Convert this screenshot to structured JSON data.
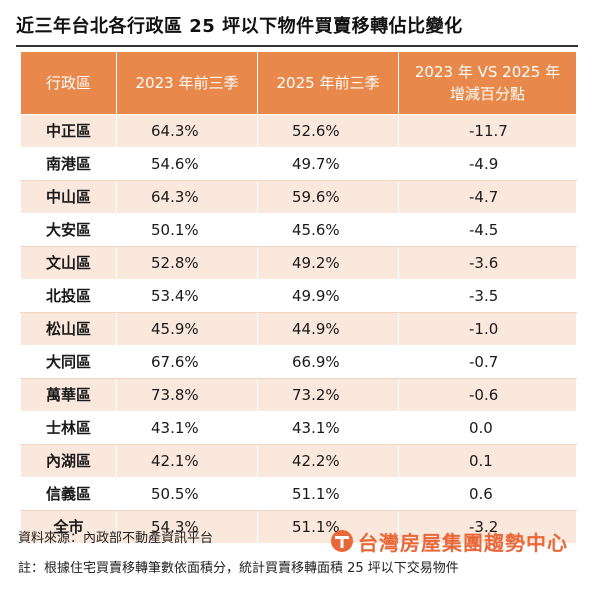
{
  "title": "近三年台北各行政區 25 坪以下物件買賣移轉佔比變化",
  "chart_data": {
    "type": "table",
    "headers": [
      "行政區",
      "2023 年前三季",
      "2025 年前三季",
      "2023 年 VS 2025 年",
      "增減百分點"
    ],
    "rows": [
      {
        "district": "中正區",
        "y2023": "64.3%",
        "y2025": "52.6%",
        "change": "-11.7"
      },
      {
        "district": "南港區",
        "y2023": "54.6%",
        "y2025": "49.7%",
        "change": "-4.9"
      },
      {
        "district": "中山區",
        "y2023": "64.3%",
        "y2025": "59.6%",
        "change": "-4.7"
      },
      {
        "district": "大安區",
        "y2023": "50.1%",
        "y2025": "45.6%",
        "change": "-4.5"
      },
      {
        "district": "文山區",
        "y2023": "52.8%",
        "y2025": "49.2%",
        "change": "-3.6"
      },
      {
        "district": "北投區",
        "y2023": "53.4%",
        "y2025": "49.9%",
        "change": "-3.5"
      },
      {
        "district": "松山區",
        "y2023": "45.9%",
        "y2025": "44.9%",
        "change": "-1.0"
      },
      {
        "district": "大同區",
        "y2023": "67.6%",
        "y2025": "66.9%",
        "change": "-0.7"
      },
      {
        "district": "萬華區",
        "y2023": "73.8%",
        "y2025": "73.2%",
        "change": "-0.6"
      },
      {
        "district": "士林區",
        "y2023": "43.1%",
        "y2025": "43.1%",
        "change": "0.0"
      },
      {
        "district": "內湖區",
        "y2023": "42.1%",
        "y2025": "42.2%",
        "change": "0.1"
      },
      {
        "district": "信義區",
        "y2023": "50.5%",
        "y2025": "51.1%",
        "change": "0.6"
      },
      {
        "district": "全市",
        "y2023": "54.3%",
        "y2025": "51.1%",
        "change": "-3.2"
      }
    ]
  },
  "source": "資料來源：內政部不動產資訊平台",
  "brand": "台灣房屋集團趨勢中心",
  "note": "註：根據住宅買賣移轉筆數依面積分，統計買賣移轉面積 25 坪以下交易物件",
  "colors": {
    "header_bg": "#e8884a",
    "band_bg": "#fbe8dc",
    "brand": "#e8683a"
  },
  "icons": {
    "brand_logo": "taiwan-realty-logo-icon"
  }
}
